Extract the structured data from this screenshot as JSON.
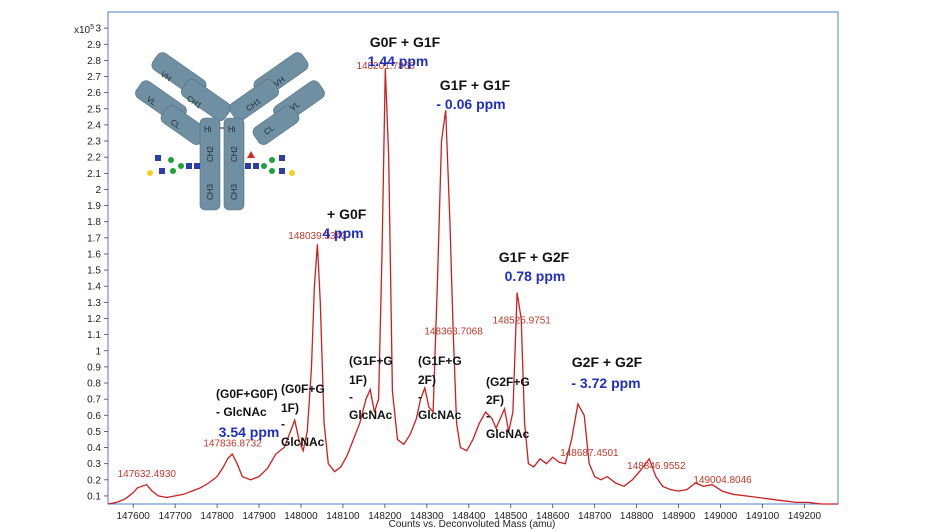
{
  "chart_data": {
    "type": "line",
    "xlabel": "Counts vs. Deconvoluted Mass (amu)",
    "ylabel": "",
    "y_multiplier": "x10",
    "y_exponent": "5",
    "xlim": [
      147540,
      149280
    ],
    "ylim": [
      0.05,
      3.1
    ],
    "x_ticks": [
      147600,
      147700,
      147800,
      147900,
      148000,
      148100,
      148200,
      148300,
      148400,
      148500,
      148600,
      148700,
      148800,
      148900,
      149000,
      149100,
      149200
    ],
    "y_ticks": [
      0.1,
      0.2,
      0.3,
      0.4,
      0.5,
      0.6,
      0.7,
      0.8,
      0.9,
      1,
      1.1,
      1.2,
      1.3,
      1.4,
      1.5,
      1.6,
      1.7,
      1.8,
      1.9,
      2,
      2.1,
      2.2,
      2.3,
      2.4,
      2.5,
      2.6,
      2.7,
      2.8,
      2.9,
      3
    ],
    "y_tick_labels": [
      "0.1",
      "0.2",
      "0.3",
      "0.4",
      "0.5",
      "0.6",
      "0.7",
      "0.8",
      "0.9",
      "1",
      "1.1",
      "1.2",
      "1.3",
      "1.4",
      "1.5",
      "1.6",
      "1.7",
      "1.8",
      "1.9",
      "2",
      "2.1",
      "2.2",
      "2.3",
      "2.4",
      "2.5",
      "2.6",
      "2.7",
      "2.8",
      "2.9",
      "3"
    ],
    "line_color": "#cc1f1f",
    "series": [
      {
        "x": [
          147540,
          147560,
          147580,
          147600,
          147610,
          147620,
          147632,
          147645,
          147660,
          147680,
          147700,
          147720,
          147740,
          147760,
          147780,
          147800,
          147815,
          147825,
          147836,
          147848,
          147860,
          147880,
          147900,
          147920,
          147940,
          147960,
          147975,
          147985,
          147995,
          148005,
          148015,
          148025,
          148032,
          148039,
          148046,
          148055,
          148065,
          148080,
          148095,
          148110,
          148125,
          148140,
          148155,
          148165,
          148175,
          148185,
          148193,
          148201,
          148209,
          148218,
          148230,
          148245,
          148260,
          148275,
          148285,
          148295,
          148305,
          148315,
          148325,
          148335,
          148345,
          148355,
          148363,
          148371,
          148380,
          148395,
          148410,
          148425,
          148440,
          148455,
          148465,
          148475,
          148485,
          148495,
          148505,
          148515,
          148525,
          148533,
          148542,
          148555,
          148570,
          148585,
          148600,
          148615,
          148630,
          148645,
          148660,
          148675,
          148687,
          148700,
          148715,
          148730,
          148750,
          148770,
          148790,
          148810,
          148830,
          148846,
          148862,
          148880,
          148900,
          148920,
          148940,
          148960,
          148980,
          149004,
          149030,
          149060,
          149090,
          149120,
          149150,
          149180,
          149210,
          149240,
          149280
        ],
        "y": [
          0.05,
          0.06,
          0.08,
          0.12,
          0.15,
          0.16,
          0.17,
          0.13,
          0.1,
          0.09,
          0.1,
          0.11,
          0.13,
          0.15,
          0.18,
          0.22,
          0.28,
          0.33,
          0.36,
          0.3,
          0.22,
          0.2,
          0.22,
          0.27,
          0.36,
          0.4,
          0.5,
          0.57,
          0.45,
          0.38,
          0.5,
          0.9,
          1.4,
          1.66,
          1.3,
          0.55,
          0.3,
          0.25,
          0.28,
          0.35,
          0.45,
          0.55,
          0.7,
          0.76,
          0.62,
          0.7,
          1.6,
          2.75,
          2.2,
          0.75,
          0.45,
          0.42,
          0.48,
          0.58,
          0.7,
          0.77,
          0.65,
          0.62,
          1.4,
          2.3,
          2.49,
          1.8,
          1.1,
          0.55,
          0.4,
          0.38,
          0.45,
          0.55,
          0.62,
          0.58,
          0.52,
          0.58,
          0.64,
          0.5,
          0.62,
          1.36,
          1.2,
          0.55,
          0.3,
          0.28,
          0.33,
          0.3,
          0.34,
          0.31,
          0.3,
          0.45,
          0.67,
          0.6,
          0.3,
          0.22,
          0.2,
          0.22,
          0.18,
          0.16,
          0.2,
          0.26,
          0.33,
          0.22,
          0.16,
          0.14,
          0.13,
          0.14,
          0.18,
          0.16,
          0.17,
          0.13,
          0.11,
          0.1,
          0.09,
          0.08,
          0.07,
          0.06,
          0.06,
          0.05,
          0.05
        ]
      }
    ],
    "peak_labels": [
      {
        "mass": 147632.493,
        "text": "147632.4930"
      },
      {
        "mass": 147836.8732,
        "text": "147836.8732"
      },
      {
        "mass": 148039.3343,
        "text": "148039.3343"
      },
      {
        "mass": 148201.7866,
        "text": "148201.7866"
      },
      {
        "mass": 148363.7068,
        "text": "148363.7068"
      },
      {
        "mass": 148525.9751,
        "text": "148525.9751"
      },
      {
        "mass": 148687.4501,
        "text": "148687.4501"
      },
      {
        "mass": 148846.9552,
        "text": "148846.9552"
      },
      {
        "mass": 149004.8046,
        "text": "149004.8046"
      }
    ],
    "annotations": [
      {
        "lines": [
          "G0F + G1F"
        ],
        "ppm": "1.44 ppm"
      },
      {
        "lines": [
          "G1F + G1F"
        ],
        "ppm": "- 0.06 ppm"
      },
      {
        "lines": [
          "+ G0F"
        ],
        "ppm": "4 ppm"
      },
      {
        "lines": [
          "G1F + G2F"
        ],
        "ppm": "0.78 ppm"
      },
      {
        "lines": [
          "G2F + G2F"
        ],
        "ppm": "- 3.72 ppm"
      },
      {
        "lines": [
          "(G0F+G0F)",
          "- GlcNAc"
        ],
        "ppm": "3.54 ppm"
      },
      {
        "lines": [
          "(G0F+G",
          "1F)",
          "-",
          "GlcNAc"
        ],
        "ppm": ""
      },
      {
        "lines": [
          "(G1F+G",
          "1F)",
          "-",
          "GlcNAc"
        ],
        "ppm": ""
      },
      {
        "lines": [
          "(G1F+G",
          "2F)",
          "-",
          "GlcNAc"
        ],
        "ppm": ""
      },
      {
        "lines": [
          "(G2F+G",
          "2F)",
          "-",
          "GlcNAc"
        ],
        "ppm": ""
      }
    ],
    "antibody_labels": [
      "VH",
      "CH1",
      "VL",
      "CL",
      "Hi",
      "CH2",
      "CH3"
    ]
  }
}
